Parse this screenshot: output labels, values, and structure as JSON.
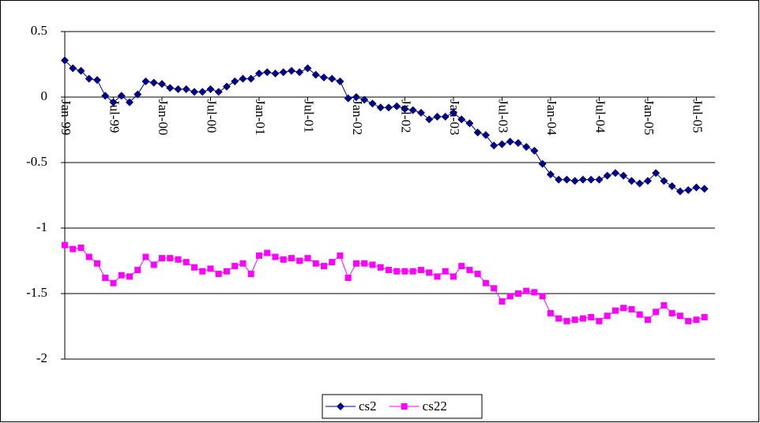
{
  "chart_data": {
    "type": "line",
    "categories": [
      "Jan-99",
      null,
      null,
      null,
      null,
      null,
      "Jul-99",
      null,
      null,
      null,
      null,
      null,
      "Jan-00",
      null,
      null,
      null,
      null,
      null,
      "Jul-00",
      null,
      null,
      null,
      null,
      null,
      "Jan-01",
      null,
      null,
      null,
      null,
      null,
      "Jul-01",
      null,
      null,
      null,
      null,
      null,
      "Jan-02",
      null,
      null,
      null,
      null,
      null,
      "Jul-02",
      null,
      null,
      null,
      null,
      null,
      "Jan-03",
      null,
      null,
      null,
      null,
      null,
      "Jul-03",
      null,
      null,
      null,
      null,
      null,
      "Jan-04",
      null,
      null,
      null,
      null,
      null,
      "Jul-04",
      null,
      null,
      null,
      null,
      null,
      "Jan-05",
      null,
      null,
      null,
      null,
      null,
      "Jul-05",
      null
    ],
    "series": [
      {
        "name": "cs2",
        "color": "#000080",
        "marker": "diamond",
        "values": [
          0.28,
          0.22,
          0.2,
          0.14,
          0.13,
          0.01,
          -0.04,
          0.01,
          -0.04,
          0.02,
          0.12,
          0.11,
          0.1,
          0.07,
          0.06,
          0.06,
          0.04,
          0.04,
          0.06,
          0.04,
          0.08,
          0.12,
          0.14,
          0.14,
          0.18,
          0.19,
          0.18,
          0.19,
          0.2,
          0.19,
          0.22,
          0.17,
          0.15,
          0.14,
          0.12,
          -0.01,
          0.0,
          -0.02,
          -0.05,
          -0.08,
          -0.08,
          -0.07,
          -0.09,
          -0.1,
          -0.12,
          -0.17,
          -0.15,
          -0.15,
          -0.12,
          -0.17,
          -0.2,
          -0.27,
          -0.29,
          -0.37,
          -0.36,
          -0.34,
          -0.35,
          -0.38,
          -0.41,
          -0.51,
          -0.59,
          -0.63,
          -0.63,
          -0.64,
          -0.63,
          -0.63,
          -0.63,
          -0.6,
          -0.58,
          -0.6,
          -0.64,
          -0.66,
          -0.64,
          -0.58,
          -0.64,
          -0.68,
          -0.72,
          -0.71,
          -0.69,
          -0.7
        ]
      },
      {
        "name": "cs22",
        "color": "#ff00ff",
        "marker": "square",
        "values": [
          -1.13,
          -1.16,
          -1.15,
          -1.22,
          -1.27,
          -1.38,
          -1.42,
          -1.36,
          -1.37,
          -1.32,
          -1.22,
          -1.28,
          -1.23,
          -1.23,
          -1.24,
          -1.26,
          -1.3,
          -1.33,
          -1.31,
          -1.35,
          -1.33,
          -1.29,
          -1.27,
          -1.35,
          -1.21,
          -1.19,
          -1.22,
          -1.24,
          -1.23,
          -1.25,
          -1.23,
          -1.27,
          -1.29,
          -1.26,
          -1.21,
          -1.38,
          -1.27,
          -1.27,
          -1.28,
          -1.3,
          -1.32,
          -1.33,
          -1.33,
          -1.33,
          -1.32,
          -1.34,
          -1.37,
          -1.33,
          -1.37,
          -1.29,
          -1.32,
          -1.35,
          -1.42,
          -1.46,
          -1.56,
          -1.52,
          -1.5,
          -1.48,
          -1.49,
          -1.52,
          -1.65,
          -1.69,
          -1.71,
          -1.7,
          -1.69,
          -1.68,
          -1.71,
          -1.67,
          -1.63,
          -1.61,
          -1.62,
          -1.66,
          -1.7,
          -1.64,
          -1.59,
          -1.65,
          -1.67,
          -1.71,
          -1.7,
          -1.68
        ]
      }
    ],
    "ylim": [
      -2,
      0.5
    ],
    "yticks": [
      0.5,
      0,
      -0.5,
      -1,
      -1.5,
      -2
    ],
    "grid": true,
    "legend": "bottom"
  }
}
